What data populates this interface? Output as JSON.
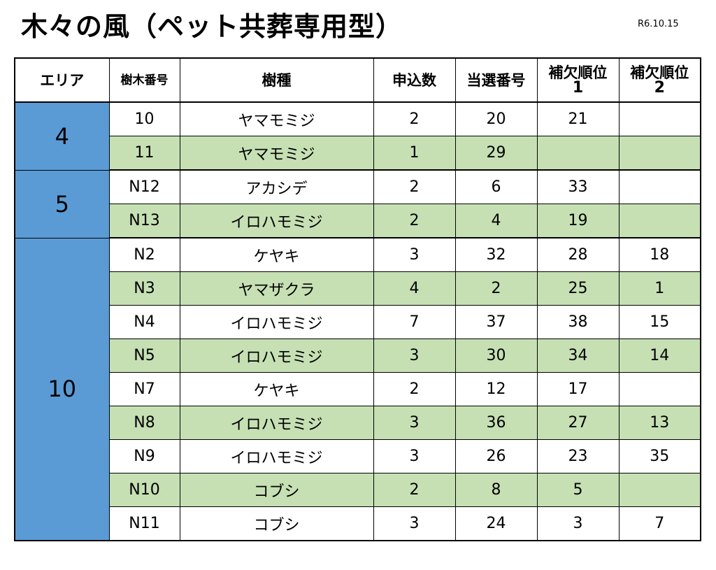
{
  "title": "木々の風（ペット共葬専用型）",
  "date": "R6.10.15",
  "colors": {
    "area_fill": "#5b9bd5",
    "alt_row_fill": "#c6e0b4",
    "border": "#000000"
  },
  "table": {
    "headers": {
      "area": "エリア",
      "tree_number": "樹木番号",
      "species": "樹種",
      "applications": "申込数",
      "winning_number": "当選番号",
      "alt1_line1": "補欠順位",
      "alt1_line2": "1",
      "alt2_line1": "補欠順位",
      "alt2_line2": "2"
    },
    "groups": [
      {
        "area": "4",
        "rows": [
          {
            "tree": "10",
            "species": "ヤマモミジ",
            "applications": "2",
            "winning": "20",
            "alt1": "21",
            "alt2": ""
          },
          {
            "tree": "11",
            "species": "ヤマモミジ",
            "applications": "1",
            "winning": "29",
            "alt1": "",
            "alt2": ""
          }
        ]
      },
      {
        "area": "5",
        "rows": [
          {
            "tree": "N12",
            "species": "アカシデ",
            "applications": "2",
            "winning": "6",
            "alt1": "33",
            "alt2": ""
          },
          {
            "tree": "N13",
            "species": "イロハモミジ",
            "applications": "2",
            "winning": "4",
            "alt1": "19",
            "alt2": ""
          }
        ]
      },
      {
        "area": "10",
        "rows": [
          {
            "tree": "N2",
            "species": "ケヤキ",
            "applications": "3",
            "winning": "32",
            "alt1": "28",
            "alt2": "18"
          },
          {
            "tree": "N3",
            "species": "ヤマザクラ",
            "applications": "4",
            "winning": "2",
            "alt1": "25",
            "alt2": "1"
          },
          {
            "tree": "N4",
            "species": "イロハモミジ",
            "applications": "7",
            "winning": "37",
            "alt1": "38",
            "alt2": "15"
          },
          {
            "tree": "N5",
            "species": "イロハモミジ",
            "applications": "3",
            "winning": "30",
            "alt1": "34",
            "alt2": "14"
          },
          {
            "tree": "N7",
            "species": "ケヤキ",
            "applications": "2",
            "winning": "12",
            "alt1": "17",
            "alt2": ""
          },
          {
            "tree": "N8",
            "species": "イロハモミジ",
            "applications": "3",
            "winning": "36",
            "alt1": "27",
            "alt2": "13"
          },
          {
            "tree": "N9",
            "species": "イロハモミジ",
            "applications": "3",
            "winning": "26",
            "alt1": "23",
            "alt2": "35"
          },
          {
            "tree": "N10",
            "species": "コブシ",
            "applications": "2",
            "winning": "8",
            "alt1": "5",
            "alt2": ""
          },
          {
            "tree": "N11",
            "species": "コブシ",
            "applications": "3",
            "winning": "24",
            "alt1": "3",
            "alt2": "7"
          }
        ]
      }
    ]
  }
}
